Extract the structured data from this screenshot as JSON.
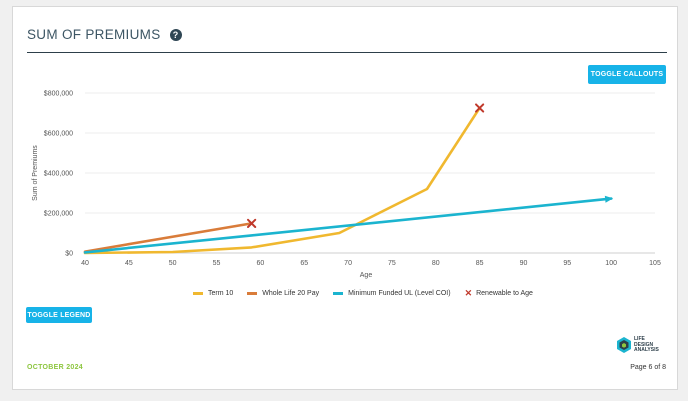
{
  "header": {
    "title": "SUM OF PREMIUMS",
    "help_icon": "question-circle-icon"
  },
  "buttons": {
    "toggle_callouts": "TOGGLE CALLOUTS",
    "toggle_legend": "TOGGLE LEGEND"
  },
  "legend": {
    "items": [
      {
        "label": "Term 10",
        "color": "#f0b82f"
      },
      {
        "label": "Whole Life 20 Pay",
        "color": "#d97c3a"
      },
      {
        "label": "Minimum Funded UL (Level COI)",
        "color": "#1bb4cf"
      },
      {
        "label": "Renewable to Age",
        "icon": "x-mark-icon",
        "color": "#c0392b"
      }
    ]
  },
  "footer": {
    "date": "OCTOBER 2024",
    "page": "Page 6 of 8",
    "logo_lines": [
      "LIFE",
      "DESIGN",
      "ANALYSIS"
    ]
  },
  "chart_data": {
    "type": "line",
    "xlabel": "Age",
    "ylabel": "Sum of Premiums",
    "xlim": [
      40,
      105
    ],
    "ylim": [
      0,
      800000
    ],
    "x_ticks": [
      40,
      45,
      50,
      55,
      60,
      65,
      70,
      75,
      80,
      85,
      90,
      95,
      100,
      105
    ],
    "y_ticks": [
      0,
      200000,
      400000,
      600000,
      800000
    ],
    "y_tick_labels": [
      "$0",
      "$200,000",
      "$400,000",
      "$600,000",
      "$800,000"
    ],
    "grid": "horizontal",
    "legend_position": "bottom",
    "series": [
      {
        "name": "Term 10",
        "color": "#f0b82f",
        "points": [
          [
            40,
            0
          ],
          [
            50,
            5000
          ],
          [
            59,
            28000
          ],
          [
            69,
            100000
          ],
          [
            79,
            320000
          ],
          [
            85,
            725000
          ]
        ]
      },
      {
        "name": "Whole Life 20 Pay",
        "color": "#d97c3a",
        "points": [
          [
            40,
            7000
          ],
          [
            59,
            148000
          ]
        ]
      },
      {
        "name": "Minimum Funded UL (Level COI)",
        "color": "#1bb4cf",
        "points": [
          [
            40,
            3000
          ],
          [
            59,
            88000
          ],
          [
            100,
            272000
          ]
        ]
      }
    ],
    "markers": [
      {
        "name": "Renewable to Age",
        "x": 59,
        "y": 148000,
        "color": "#c0392b"
      },
      {
        "name": "Renewable to Age",
        "x": 85,
        "y": 725000,
        "color": "#c0392b"
      }
    ]
  }
}
